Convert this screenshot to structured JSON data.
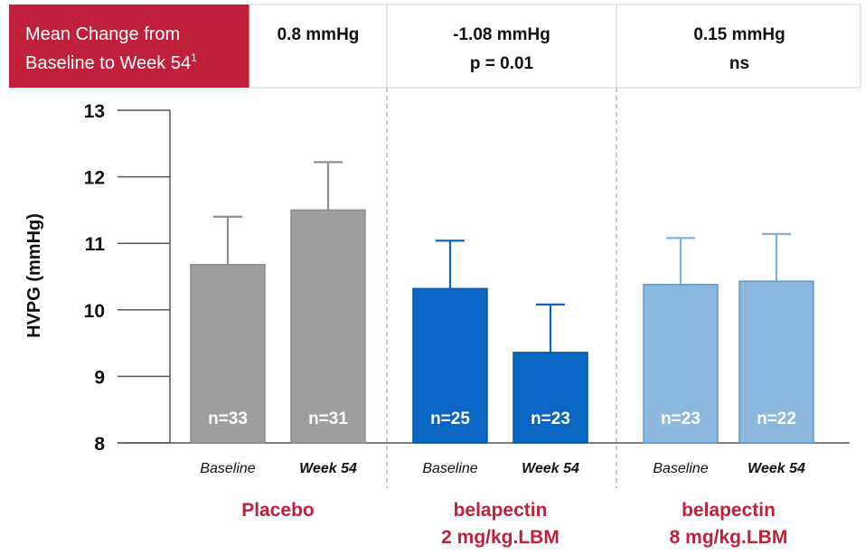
{
  "header": {
    "label_lines": [
      "Mean Change from",
      "Baseline to Week 54"
    ],
    "label_superscript": "1",
    "groups": [
      {
        "lines": [
          "0.8 mmHg"
        ]
      },
      {
        "lines": [
          "-1.08 mmHg",
          "p = 0.01"
        ]
      },
      {
        "lines": [
          "0.15 mmHg",
          "ns"
        ]
      }
    ]
  },
  "colors": {
    "header_red": "#c0213a",
    "group_label_red": "#c0213a",
    "placebo_gray": "#9e9e9e",
    "dose2_blue": "#0a66c2",
    "dose8_blue": "#8db8dd",
    "axis": "#555555"
  },
  "chart_data": {
    "type": "bar",
    "ylabel": "HVPG (mmHg)",
    "ylim": [
      8,
      13
    ],
    "yticks": [
      8,
      9,
      10,
      11,
      12,
      13
    ],
    "grid": false,
    "groups": [
      {
        "label_lines": [
          "Placebo"
        ],
        "bars": [
          {
            "category": "Baseline",
            "value": 10.68,
            "error_upper": 11.4,
            "n_label": "n=33"
          },
          {
            "category": "Week 54",
            "value": 11.5,
            "error_upper": 12.22,
            "n_label": "n=31"
          }
        ]
      },
      {
        "label_lines": [
          "belapectin",
          "2 mg/kg.LBM"
        ],
        "bars": [
          {
            "category": "Baseline",
            "value": 10.32,
            "error_upper": 11.04,
            "n_label": "n=25"
          },
          {
            "category": "Week 54",
            "value": 9.36,
            "error_upper": 10.08,
            "n_label": "n=23"
          }
        ]
      },
      {
        "label_lines": [
          "belapectin",
          "8 mg/kg.LBM"
        ],
        "bars": [
          {
            "category": "Baseline",
            "value": 10.38,
            "error_upper": 11.08,
            "n_label": "n=23"
          },
          {
            "category": "Week 54",
            "value": 10.43,
            "error_upper": 11.14,
            "n_label": "n=22"
          }
        ]
      }
    ]
  }
}
